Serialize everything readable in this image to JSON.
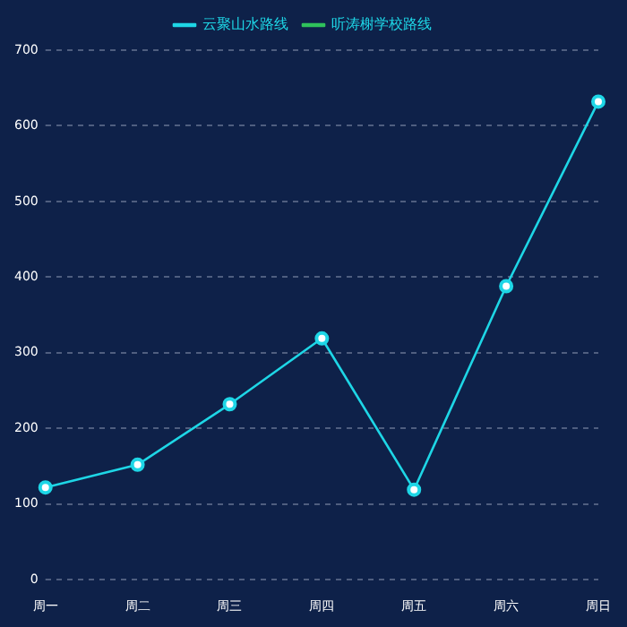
{
  "chart_data": {
    "type": "line",
    "categories": [
      "周一",
      "周二",
      "周三",
      "周四",
      "周五",
      "周六",
      "周日"
    ],
    "series": [
      {
        "name": "云聚山水路线",
        "color": "#1ed6e6",
        "values": [
          122,
          152,
          232,
          319,
          119,
          388,
          632
        ]
      },
      {
        "name": "听涛榭学校路线",
        "color": "#2fc25b",
        "values": [
          null,
          null,
          null,
          null,
          null,
          null,
          null
        ]
      }
    ],
    "ylim": [
      0,
      700
    ],
    "yticks": [
      0,
      100,
      200,
      300,
      400,
      500,
      600,
      700
    ],
    "grid": "y",
    "legend": "top",
    "marker": "circle"
  }
}
